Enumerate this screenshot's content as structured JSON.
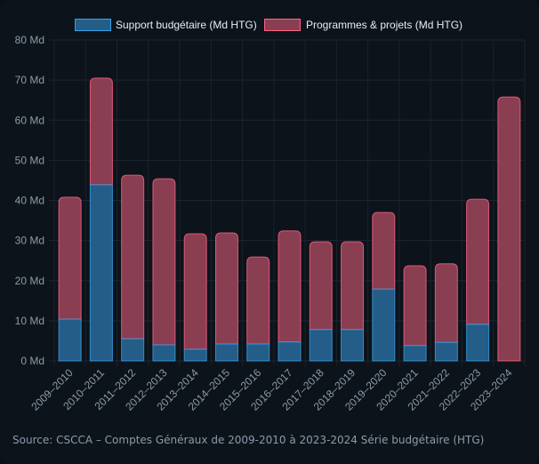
{
  "chart_data": {
    "type": "bar",
    "stacked": true,
    "title": "",
    "xlabel": "",
    "ylabel": "",
    "ylim": [
      0,
      80
    ],
    "y_ticks": [
      0,
      10,
      20,
      30,
      40,
      50,
      60,
      70,
      80
    ],
    "y_tick_suffix": " Md",
    "grid": true,
    "legend_position": "top-center",
    "categories": [
      "2009–2010",
      "2010–2011",
      "2011–2012",
      "2012–2013",
      "2013–2014",
      "2014–2015",
      "2015–2016",
      "2016–2017",
      "2017–2018",
      "2018–2019",
      "2019–2020",
      "2020–2021",
      "2021–2022",
      "2022–2023",
      "2023–2024"
    ],
    "series": [
      {
        "name": "Support budgétaire (Md HTG)",
        "color": "#36a2eb",
        "fill": "#245d87",
        "values": [
          10.4,
          43.9,
          5.5,
          4.0,
          2.9,
          4.2,
          4.2,
          4.7,
          7.8,
          7.8,
          17.9,
          3.8,
          4.6,
          9.1,
          0
        ]
      },
      {
        "name": "Programmes & projets (Md HTG)",
        "color": "#ff6384",
        "fill": "#8a3e52",
        "values": [
          30.4,
          26.6,
          40.8,
          41.4,
          28.8,
          27.7,
          21.7,
          27.7,
          21.9,
          21.9,
          19.1,
          19.9,
          19.6,
          31.2,
          65.8
        ]
      }
    ],
    "totals": [
      40.8,
      70.5,
      46.3,
      45.4,
      31.7,
      31.9,
      25.9,
      32.4,
      29.7,
      29.7,
      37.0,
      23.7,
      24.2,
      40.3,
      65.8
    ]
  },
  "source_text": "Source: CSCCA – Comptes Généraux de 2009-2010 à 2023-2024 Série budgétaire (HTG)"
}
